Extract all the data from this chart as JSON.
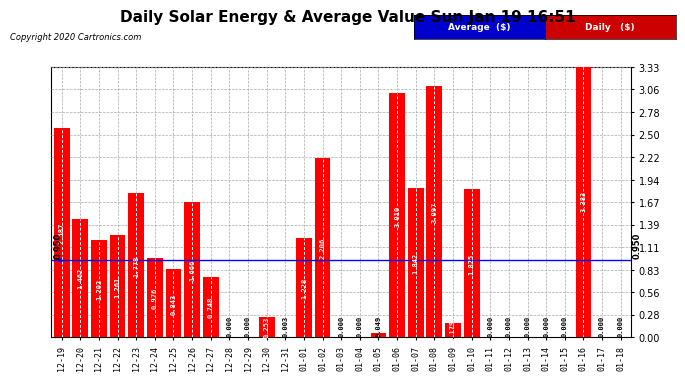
{
  "title": "Daily Solar Energy & Average Value Sun Jan 19 16:51",
  "copyright": "Copyright 2020 Cartronics.com",
  "categories": [
    "12-19",
    "12-20",
    "12-21",
    "12-22",
    "12-23",
    "12-24",
    "12-25",
    "12-26",
    "12-27",
    "12-28",
    "12-29",
    "12-30",
    "12-31",
    "01-01",
    "01-02",
    "01-03",
    "01-04",
    "01-05",
    "01-06",
    "01-07",
    "01-08",
    "01-09",
    "01-10",
    "01-11",
    "01-12",
    "01-13",
    "01-14",
    "01-15",
    "01-16",
    "01-17",
    "01-18"
  ],
  "values": [
    2.587,
    1.462,
    1.202,
    1.261,
    1.778,
    0.976,
    0.843,
    1.666,
    0.748,
    0.0,
    0.0,
    0.253,
    0.003,
    1.228,
    2.206,
    0.0,
    0.0,
    0.049,
    3.01,
    1.842,
    3.097,
    0.179,
    1.825,
    0.0,
    0.0,
    0.0,
    0.0,
    0.0,
    3.383,
    0.0,
    0.0
  ],
  "average": 0.95,
  "bar_color": "#FF0000",
  "average_line_color": "#0000FF",
  "bg_color": "#FFFFFF",
  "plot_bg_color": "#FFFFFF",
  "grid_color": "#AAAAAA",
  "ylim": [
    0.0,
    3.33
  ],
  "yticks": [
    0.0,
    0.28,
    0.56,
    0.83,
    1.11,
    1.39,
    1.67,
    1.94,
    2.22,
    2.5,
    2.78,
    3.06,
    3.33
  ],
  "title_fontsize": 11,
  "legend_blue_label": "Average  ($)",
  "legend_red_label": "Daily   ($)",
  "value_label_color": "#FFFFFF",
  "average_label": "0.950"
}
